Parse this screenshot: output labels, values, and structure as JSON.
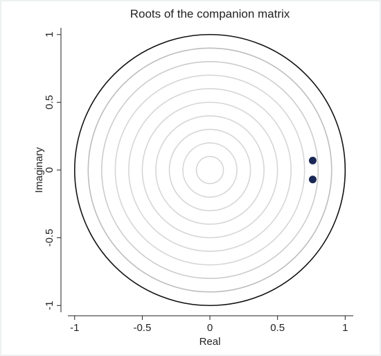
{
  "chart_data": {
    "type": "scatter",
    "title": "Roots of the companion matrix",
    "x_label": "Real",
    "y_label": "Imaginary",
    "series": [
      {
        "color": "#1a2855",
        "x": [
          0.76,
          0.76
        ],
        "values": [
          0.07,
          -0.07
        ]
      }
    ],
    "circles": [
      {
        "radius": 1,
        "color": "#111111"
      },
      {
        "radius": 0.9,
        "color": "#bdbdbd"
      },
      {
        "radius": 0.8,
        "color": "#cccccc"
      },
      {
        "radius": 0.7,
        "color": "#d6d6d6"
      },
      {
        "radius": 0.6,
        "color": "#d6d6d6"
      },
      {
        "radius": 0.5,
        "color": "#d6d6d6"
      },
      {
        "radius": 0.4,
        "color": "#d6d6d6"
      },
      {
        "radius": 0.3,
        "color": "#d6d6d6"
      },
      {
        "radius": 0.2,
        "color": "#d6d6d6"
      },
      {
        "radius": 0.1,
        "color": "#d6d6d6"
      }
    ],
    "xlim": [
      -1.05,
      1.06
    ],
    "ylim": [
      -1.05,
      1.05
    ],
    "xticks": [
      -1,
      -0.5,
      0,
      0.5,
      1
    ],
    "yticks": [
      -1,
      -0.5,
      0,
      0.5,
      1
    ]
  }
}
